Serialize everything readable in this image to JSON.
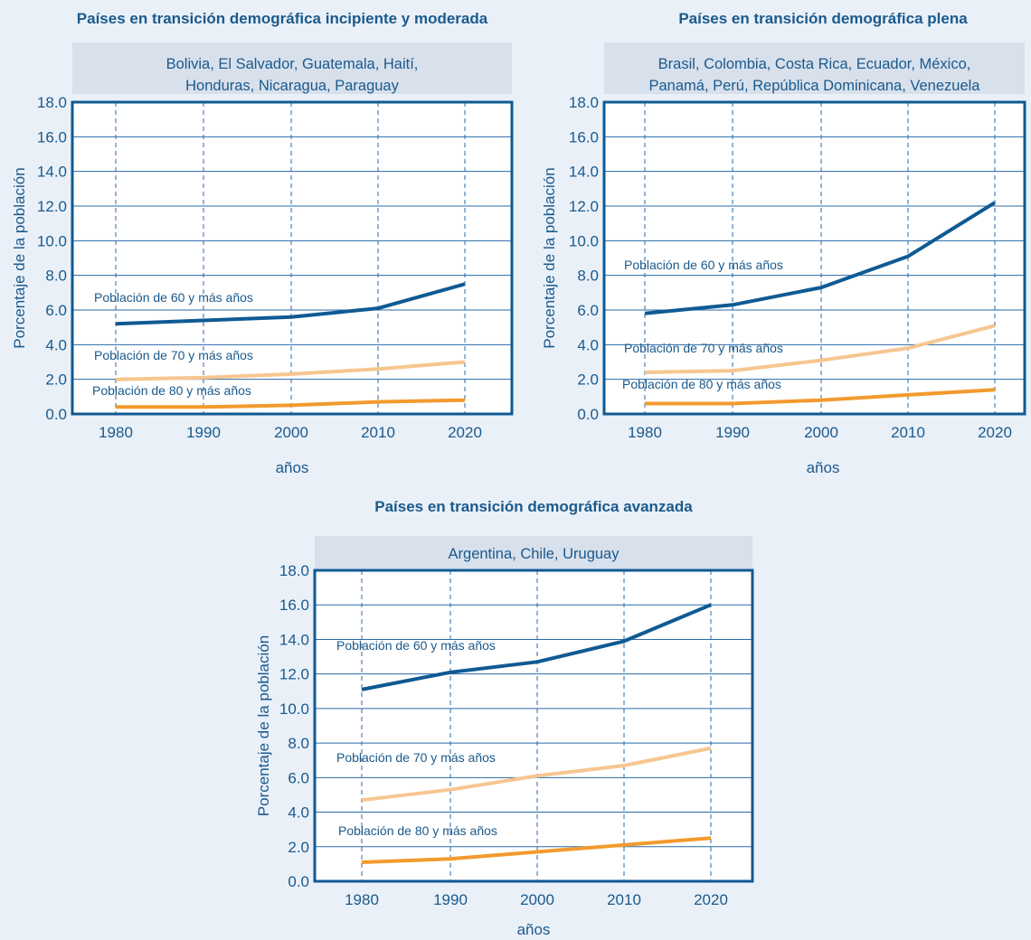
{
  "colors": {
    "background": "#eaf0f8",
    "header_band": "#d8e0ec",
    "plot_background": "#ffffff",
    "frame": "#0f5a93",
    "grid": "#2a6aa8",
    "text": "#1a5a8c",
    "series_60": "#0f5a93",
    "series_70": "#f7c690",
    "series_80": "#f29a2e"
  },
  "chart_data": [
    {
      "type": "line",
      "title": "Países en transición demográfica incipiente y moderada",
      "subtitle": [
        "Bolivia, El Salvador, Guatemala, Haití,",
        "Honduras, Nicaragua, Paraguay"
      ],
      "xlabel": "años",
      "ylabel": "Porcentaje de la población",
      "x": [
        1980,
        1990,
        2000,
        2010,
        2020
      ],
      "yticks": [
        "0.0",
        "2.0",
        "4.0",
        "6.0",
        "8.0",
        "10.0",
        "12.0",
        "14.0",
        "16.0",
        "18.0"
      ],
      "ylim": [
        0,
        18
      ],
      "grid": true,
      "series": [
        {
          "name": "Población de 60 y más años",
          "color": "#0f5a93",
          "values": [
            5.2,
            5.4,
            5.6,
            6.1,
            7.5
          ]
        },
        {
          "name": "Población de 70 y más años",
          "color": "#f7c690",
          "values": [
            2.0,
            2.1,
            2.3,
            2.6,
            3.0
          ]
        },
        {
          "name": "Población de 80 y más años",
          "color": "#f29a2e",
          "values": [
            0.4,
            0.4,
            0.5,
            0.7,
            0.8
          ]
        }
      ]
    },
    {
      "type": "line",
      "title": "Países en transición demográfica plena",
      "subtitle": [
        "Brasil, Colombia, Costa Rica, Ecuador, México,",
        "Panamá, Perú, República Dominicana, Venezuela"
      ],
      "xlabel": "años",
      "ylabel": "Porcentaje de la población",
      "x": [
        1980,
        1990,
        2000,
        2010,
        2020
      ],
      "yticks": [
        "0.0",
        "2.0",
        "4.0",
        "6.0",
        "8.0",
        "10.0",
        "12.0",
        "14.0",
        "16.0",
        "18.0"
      ],
      "ylim": [
        0,
        18
      ],
      "grid": true,
      "series": [
        {
          "name": "Población de 60 y más años",
          "color": "#0f5a93",
          "values": [
            5.8,
            6.3,
            7.3,
            9.1,
            12.2
          ]
        },
        {
          "name": "Población de 70 y más años",
          "color": "#f7c690",
          "values": [
            2.4,
            2.5,
            3.1,
            3.8,
            5.1
          ]
        },
        {
          "name": "Población de 80 y más años",
          "color": "#f29a2e",
          "values": [
            0.6,
            0.6,
            0.8,
            1.1,
            1.4
          ]
        }
      ]
    },
    {
      "type": "line",
      "title": "Países en transición demográfica avanzada",
      "subtitle": [
        "Argentina, Chile, Uruguay"
      ],
      "xlabel": "años",
      "ylabel": "Porcentaje de la población",
      "x": [
        1980,
        1990,
        2000,
        2010,
        2020
      ],
      "yticks": [
        "0.0",
        "2.0",
        "4.0",
        "6.0",
        "8.0",
        "10.0",
        "12.0",
        "14.0",
        "16.0",
        "18.0"
      ],
      "ylim": [
        0,
        18
      ],
      "grid": true,
      "series": [
        {
          "name": "Población de 60 y más años",
          "color": "#0f5a93",
          "values": [
            11.1,
            12.1,
            12.7,
            13.9,
            16.0
          ]
        },
        {
          "name": "Población de 70 y más años",
          "color": "#f7c690",
          "values": [
            4.7,
            5.3,
            6.1,
            6.7,
            7.7
          ]
        },
        {
          "name": "Población de 80 y más años",
          "color": "#f29a2e",
          "values": [
            1.1,
            1.3,
            1.7,
            2.1,
            2.5
          ]
        }
      ]
    }
  ]
}
